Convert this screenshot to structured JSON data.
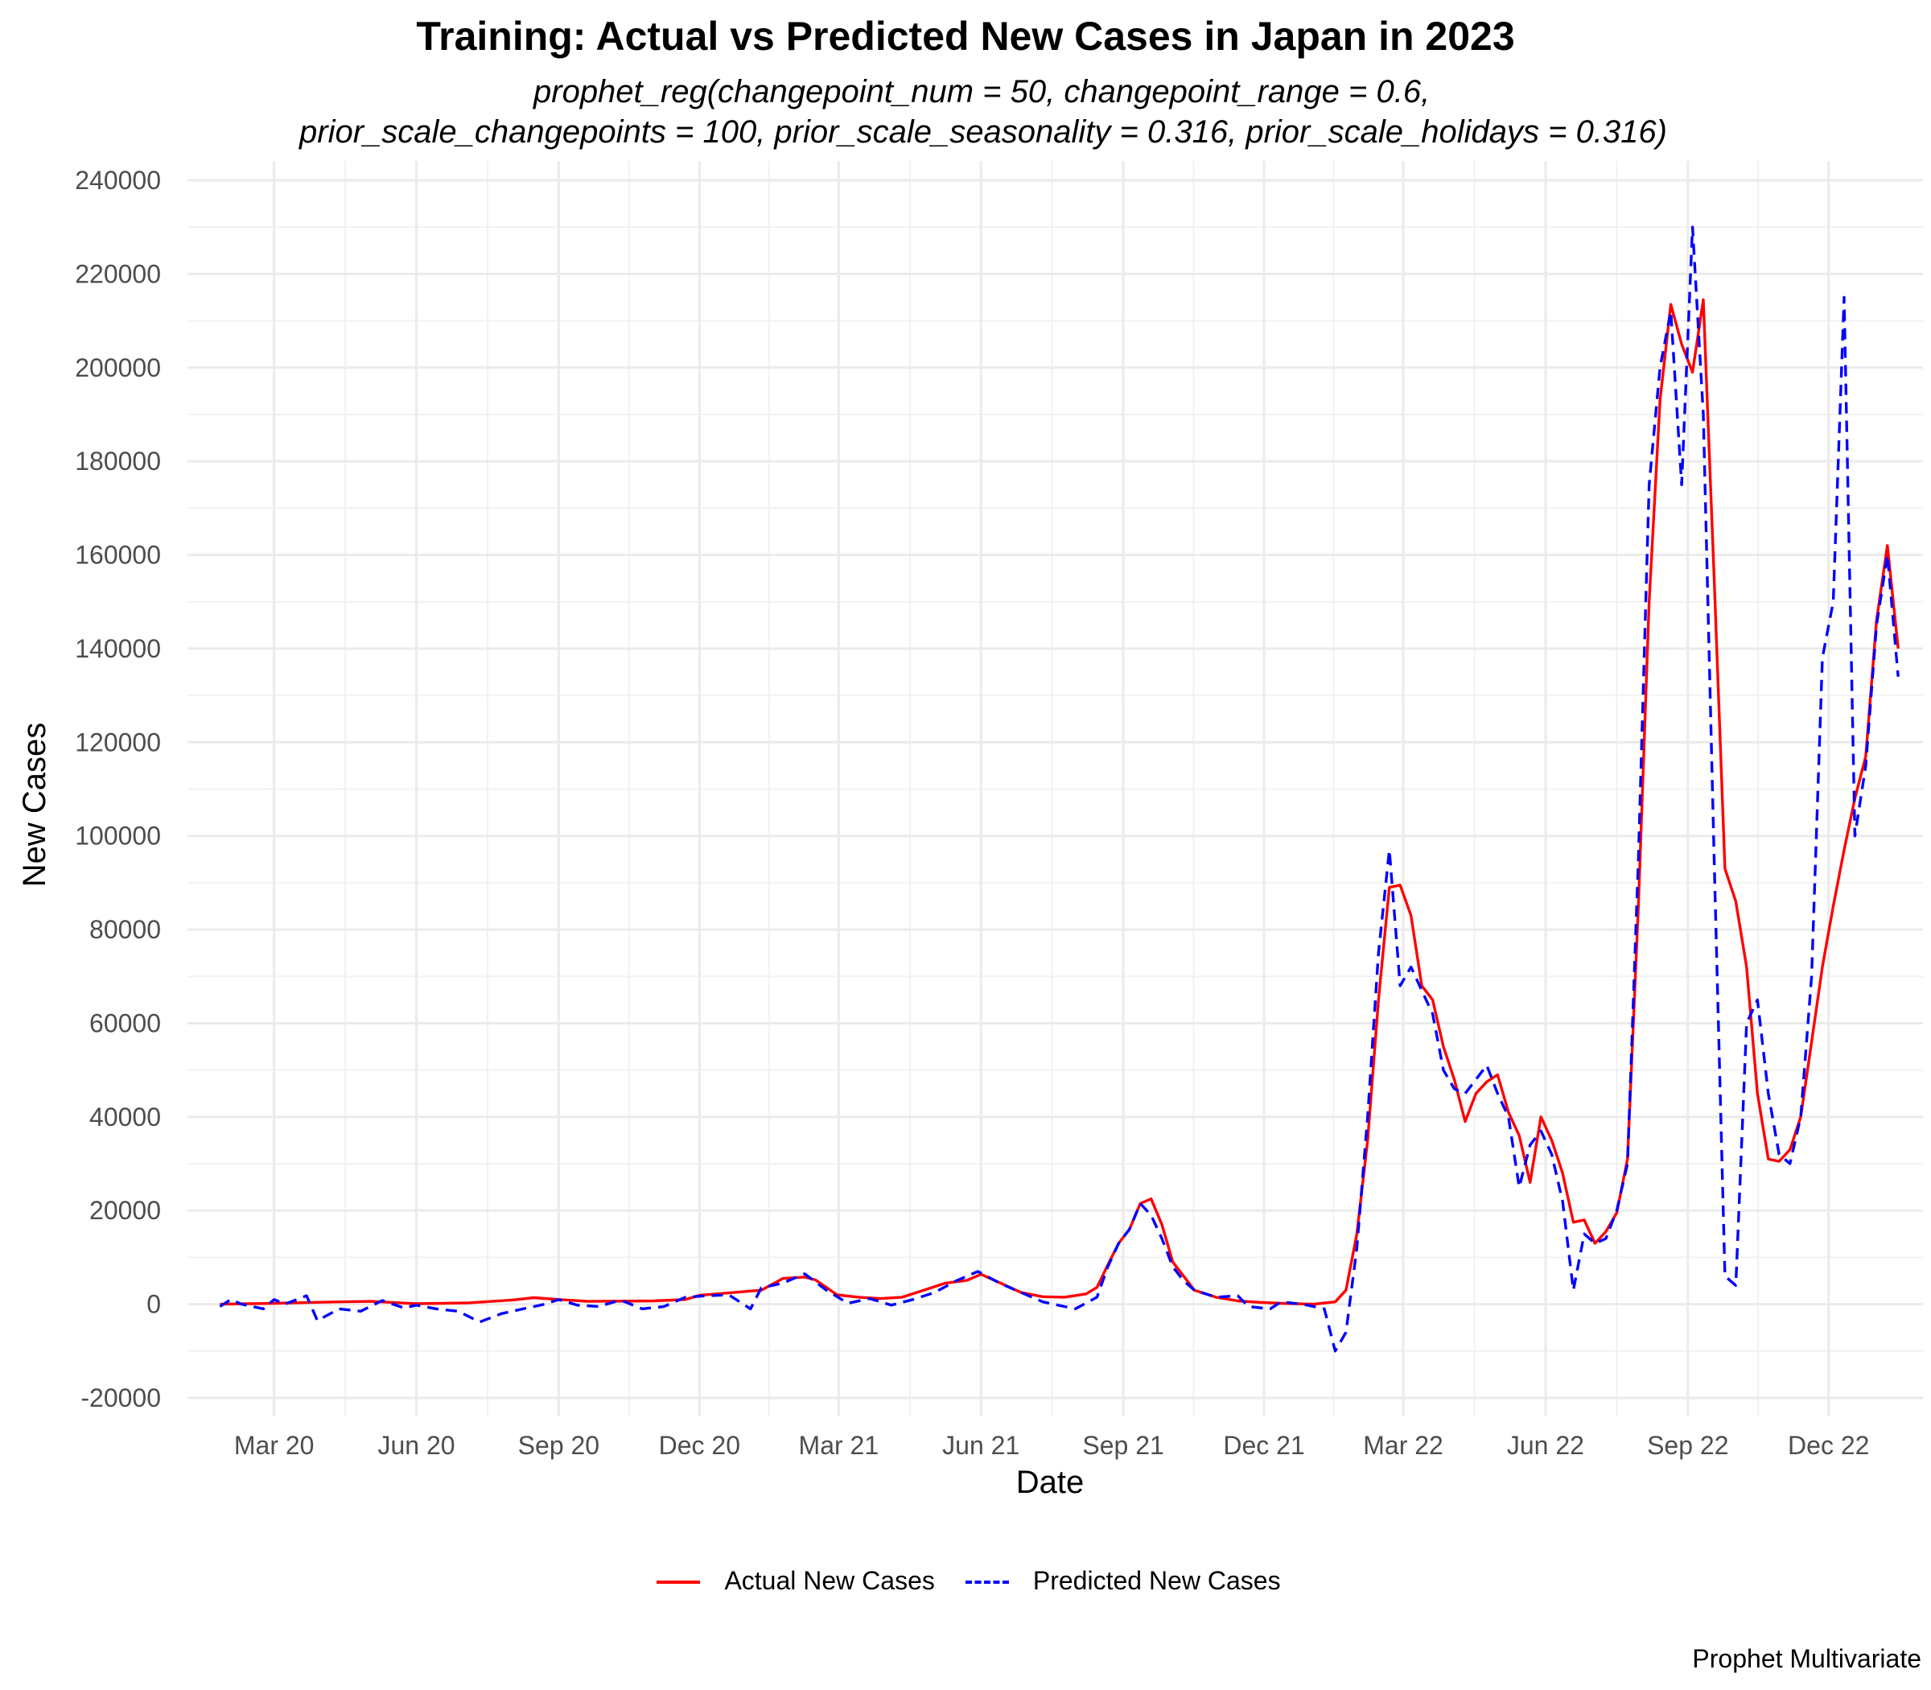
{
  "chart_data": {
    "type": "line",
    "title": "Training: Actual vs Predicted New Cases in Japan in 2023",
    "subtitle_lines": [
      "prophet_reg(changepoint_num = 50, changepoint_range = 0.6,",
      "prior_scale_changepoints = 100, prior_scale_seasonality = 0.316, prior_scale_holidays = 0.316)"
    ],
    "xlabel": "Date",
    "ylabel": "New Cases",
    "caption": "Prophet Multivariate",
    "ylim": [
      -20000,
      240000
    ],
    "yticks": [
      -20000,
      0,
      20000,
      40000,
      60000,
      80000,
      100000,
      120000,
      140000,
      160000,
      180000,
      200000,
      220000,
      240000
    ],
    "xlim": [
      "2020-01-05",
      "2023-01-31"
    ],
    "xticks": [
      {
        "date": "2020-03-01",
        "label": "Mar 20"
      },
      {
        "date": "2020-06-01",
        "label": "Jun 20"
      },
      {
        "date": "2020-09-01",
        "label": "Sep 20"
      },
      {
        "date": "2020-12-01",
        "label": "Dec 20"
      },
      {
        "date": "2021-03-01",
        "label": "Mar 21"
      },
      {
        "date": "2021-06-01",
        "label": "Jun 21"
      },
      {
        "date": "2021-09-01",
        "label": "Sep 21"
      },
      {
        "date": "2021-12-01",
        "label": "Dec 21"
      },
      {
        "date": "2022-03-01",
        "label": "Mar 22"
      },
      {
        "date": "2022-06-01",
        "label": "Jun 22"
      },
      {
        "date": "2022-09-01",
        "label": "Sep 22"
      },
      {
        "date": "2022-12-01",
        "label": "Dec 22"
      }
    ],
    "grid": true,
    "legend_position": "bottom",
    "series": [
      {
        "name": "Actual New Cases",
        "color": "#ff0000",
        "style": "solid",
        "points": [
          [
            "2020-01-26",
            0
          ],
          [
            "2020-03-01",
            200
          ],
          [
            "2020-04-12",
            500
          ],
          [
            "2020-05-03",
            600
          ],
          [
            "2020-06-01",
            100
          ],
          [
            "2020-07-05",
            300
          ],
          [
            "2020-08-02",
            900
          ],
          [
            "2020-08-16",
            1400
          ],
          [
            "2020-09-01",
            1000
          ],
          [
            "2020-09-20",
            600
          ],
          [
            "2020-11-01",
            700
          ],
          [
            "2020-11-22",
            1000
          ],
          [
            "2020-12-01",
            1900
          ],
          [
            "2021-01-10",
            3000
          ],
          [
            "2021-01-24",
            5500
          ],
          [
            "2021-02-07",
            5800
          ],
          [
            "2021-02-14",
            5200
          ],
          [
            "2021-02-28",
            2000
          ],
          [
            "2021-03-14",
            1500
          ],
          [
            "2021-03-28",
            1200
          ],
          [
            "2021-04-11",
            1500
          ],
          [
            "2021-04-25",
            3000
          ],
          [
            "2021-05-09",
            4500
          ],
          [
            "2021-05-23",
            5100
          ],
          [
            "2021-06-01",
            6400
          ],
          [
            "2021-06-13",
            4600
          ],
          [
            "2021-06-27",
            2500
          ],
          [
            "2021-07-11",
            1600
          ],
          [
            "2021-07-25",
            1500
          ],
          [
            "2021-08-08",
            2200
          ],
          [
            "2021-08-15",
            3600
          ],
          [
            "2021-08-22",
            8400
          ],
          [
            "2021-08-29",
            13000
          ],
          [
            "2021-09-05",
            16000
          ],
          [
            "2021-09-12",
            21500
          ],
          [
            "2021-09-19",
            22500
          ],
          [
            "2021-09-26",
            17000
          ],
          [
            "2021-10-03",
            9000
          ],
          [
            "2021-10-10",
            6000
          ],
          [
            "2021-10-17",
            3000
          ],
          [
            "2021-10-31",
            1500
          ],
          [
            "2021-11-14",
            700
          ],
          [
            "2021-11-28",
            400
          ],
          [
            "2021-12-12",
            200
          ],
          [
            "2022-01-02",
            0
          ],
          [
            "2022-01-16",
            500
          ],
          [
            "2022-01-23",
            3000
          ],
          [
            "2022-01-30",
            15000
          ],
          [
            "2022-02-06",
            35000
          ],
          [
            "2022-02-13",
            65000
          ],
          [
            "2022-02-20",
            89000
          ],
          [
            "2022-02-27",
            89500
          ],
          [
            "2022-03-06",
            83000
          ],
          [
            "2022-03-13",
            68000
          ],
          [
            "2022-03-20",
            65000
          ],
          [
            "2022-03-27",
            55000
          ],
          [
            "2022-04-03",
            48000
          ],
          [
            "2022-04-10",
            39000
          ],
          [
            "2022-04-17",
            45000
          ],
          [
            "2022-04-24",
            47500
          ],
          [
            "2022-05-01",
            49000
          ],
          [
            "2022-05-08",
            41000
          ],
          [
            "2022-05-15",
            36000
          ],
          [
            "2022-05-22",
            26000
          ],
          [
            "2022-05-29",
            40000
          ],
          [
            "2022-06-05",
            35000
          ],
          [
            "2022-06-12",
            28000
          ],
          [
            "2022-06-19",
            17500
          ],
          [
            "2022-06-26",
            18000
          ],
          [
            "2022-07-03",
            13000
          ],
          [
            "2022-07-10",
            15500
          ],
          [
            "2022-07-17",
            19500
          ],
          [
            "2022-07-24",
            31000
          ],
          [
            "2022-07-31",
            85000
          ],
          [
            "2022-08-07",
            150000
          ],
          [
            "2022-08-14",
            193000
          ],
          [
            "2022-08-21",
            213500
          ],
          [
            "2022-08-28",
            205000
          ],
          [
            "2022-09-04",
            199000
          ],
          [
            "2022-09-11",
            214500
          ],
          [
            "2022-09-18",
            155000
          ],
          [
            "2022-09-25",
            93000
          ],
          [
            "2022-10-02",
            86000
          ],
          [
            "2022-10-09",
            72000
          ],
          [
            "2022-10-16",
            45000
          ],
          [
            "2022-10-23",
            31000
          ],
          [
            "2022-10-30",
            30500
          ],
          [
            "2022-11-06",
            33000
          ],
          [
            "2022-11-13",
            40000
          ],
          [
            "2022-11-20",
            56000
          ],
          [
            "2022-11-27",
            72000
          ],
          [
            "2022-12-04",
            85000
          ],
          [
            "2022-12-11",
            97000
          ],
          [
            "2022-12-18",
            108000
          ],
          [
            "2022-12-25",
            117000
          ],
          [
            "2023-01-01",
            146000
          ],
          [
            "2023-01-08",
            162000
          ],
          [
            "2023-01-15",
            140000
          ]
        ]
      },
      {
        "name": "Predicted New Cases",
        "color": "#0000ff",
        "style": "dashed",
        "points": [
          [
            "2020-01-26",
            -500
          ],
          [
            "2020-02-02",
            1000
          ],
          [
            "2020-02-09",
            0
          ],
          [
            "2020-02-23",
            -1000
          ],
          [
            "2020-03-01",
            1000
          ],
          [
            "2020-03-08",
            0
          ],
          [
            "2020-03-22",
            1800
          ],
          [
            "2020-03-29",
            -3500
          ],
          [
            "2020-04-12",
            -1000
          ],
          [
            "2020-04-26",
            -1500
          ],
          [
            "2020-05-10",
            800
          ],
          [
            "2020-05-24",
            -800
          ],
          [
            "2020-06-01",
            -200
          ],
          [
            "2020-06-14",
            -1000
          ],
          [
            "2020-06-28",
            -1500
          ],
          [
            "2020-07-12",
            -3800
          ],
          [
            "2020-07-26",
            -2000
          ],
          [
            "2020-08-09",
            -1000
          ],
          [
            "2020-08-23",
            0
          ],
          [
            "2020-09-01",
            1000
          ],
          [
            "2020-09-13",
            -200
          ],
          [
            "2020-09-27",
            -500
          ],
          [
            "2020-10-11",
            900
          ],
          [
            "2020-10-25",
            -1000
          ],
          [
            "2020-11-08",
            -500
          ],
          [
            "2020-11-22",
            1500
          ],
          [
            "2020-12-06",
            1800
          ],
          [
            "2020-12-20",
            2000
          ],
          [
            "2021-01-03",
            -1000
          ],
          [
            "2021-01-10",
            3500
          ],
          [
            "2021-01-24",
            4500
          ],
          [
            "2021-02-07",
            6500
          ],
          [
            "2021-02-21",
            3000
          ],
          [
            "2021-03-07",
            200
          ],
          [
            "2021-03-21",
            1200
          ],
          [
            "2021-04-04",
            -200
          ],
          [
            "2021-04-18",
            1000
          ],
          [
            "2021-05-02",
            2500
          ],
          [
            "2021-05-16",
            5000
          ],
          [
            "2021-05-30",
            7000
          ],
          [
            "2021-06-13",
            4500
          ],
          [
            "2021-06-27",
            2500
          ],
          [
            "2021-07-11",
            500
          ],
          [
            "2021-07-25",
            -500
          ],
          [
            "2021-08-01",
            -1000
          ],
          [
            "2021-08-15",
            1500
          ],
          [
            "2021-08-22",
            8000
          ],
          [
            "2021-08-29",
            13000
          ],
          [
            "2021-09-05",
            16000
          ],
          [
            "2021-09-12",
            21500
          ],
          [
            "2021-09-19",
            19000
          ],
          [
            "2021-09-26",
            14000
          ],
          [
            "2021-10-03",
            8000
          ],
          [
            "2021-10-10",
            5000
          ],
          [
            "2021-10-17",
            3000
          ],
          [
            "2021-10-31",
            1500
          ],
          [
            "2021-11-14",
            1800
          ],
          [
            "2021-11-21",
            -500
          ],
          [
            "2021-12-05",
            -1000
          ],
          [
            "2021-12-12",
            500
          ],
          [
            "2021-12-26",
            0
          ],
          [
            "2022-01-09",
            -1000
          ],
          [
            "2022-01-16",
            -10000
          ],
          [
            "2022-01-23",
            -6000
          ],
          [
            "2022-01-30",
            12000
          ],
          [
            "2022-02-06",
            40000
          ],
          [
            "2022-02-13",
            75000
          ],
          [
            "2022-02-20",
            97000
          ],
          [
            "2022-02-27",
            68000
          ],
          [
            "2022-03-06",
            72000
          ],
          [
            "2022-03-13",
            67000
          ],
          [
            "2022-03-20",
            62000
          ],
          [
            "2022-03-27",
            50000
          ],
          [
            "2022-04-03",
            46000
          ],
          [
            "2022-04-10",
            45000
          ],
          [
            "2022-04-17",
            48000
          ],
          [
            "2022-04-24",
            51000
          ],
          [
            "2022-05-01",
            45000
          ],
          [
            "2022-05-08",
            40000
          ],
          [
            "2022-05-15",
            25000
          ],
          [
            "2022-05-22",
            34000
          ],
          [
            "2022-05-29",
            37000
          ],
          [
            "2022-06-05",
            32000
          ],
          [
            "2022-06-12",
            22000
          ],
          [
            "2022-06-19",
            3000
          ],
          [
            "2022-06-26",
            15000
          ],
          [
            "2022-07-03",
            13000
          ],
          [
            "2022-07-10",
            14000
          ],
          [
            "2022-07-17",
            20000
          ],
          [
            "2022-07-24",
            30000
          ],
          [
            "2022-07-31",
            95000
          ],
          [
            "2022-08-07",
            175000
          ],
          [
            "2022-08-14",
            200000
          ],
          [
            "2022-08-21",
            212000
          ],
          [
            "2022-08-28",
            175000
          ],
          [
            "2022-09-04",
            230000
          ],
          [
            "2022-09-11",
            190000
          ],
          [
            "2022-09-18",
            95000
          ],
          [
            "2022-09-25",
            6000
          ],
          [
            "2022-10-02",
            4000
          ],
          [
            "2022-10-09",
            60000
          ],
          [
            "2022-10-16",
            65000
          ],
          [
            "2022-10-23",
            45000
          ],
          [
            "2022-10-30",
            32000
          ],
          [
            "2022-11-06",
            30000
          ],
          [
            "2022-11-13",
            40000
          ],
          [
            "2022-11-20",
            70000
          ],
          [
            "2022-11-27",
            138000
          ],
          [
            "2022-12-04",
            150000
          ],
          [
            "2022-12-11",
            215000
          ],
          [
            "2022-12-18",
            100000
          ],
          [
            "2022-12-25",
            115000
          ],
          [
            "2023-01-01",
            145000
          ],
          [
            "2023-01-08",
            160000
          ],
          [
            "2023-01-15",
            134000
          ]
        ]
      }
    ]
  }
}
